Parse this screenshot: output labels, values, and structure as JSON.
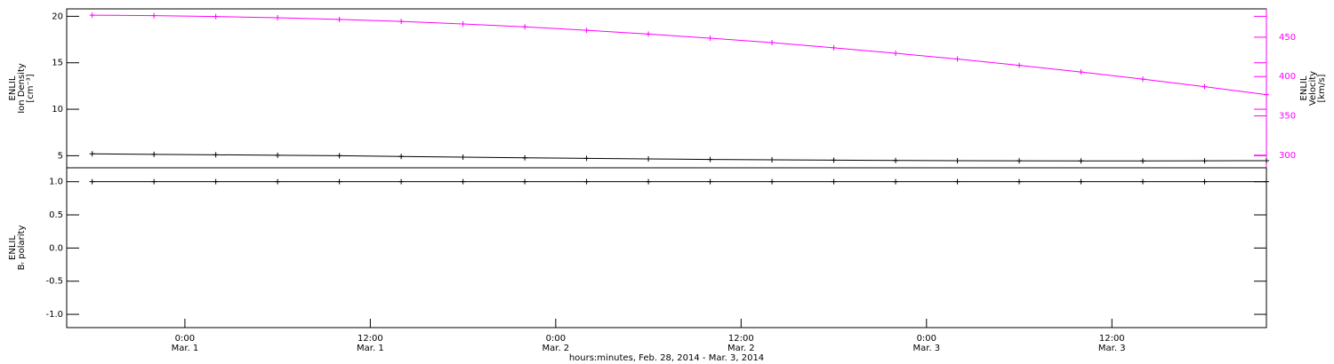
{
  "chart_data": [
    {
      "type": "line",
      "ylabel": [
        "ENLIL",
        "Ion Density",
        "[cm⁻³]"
      ],
      "y2label": [
        "ENLIL",
        "Velocity",
        "[km/s]"
      ],
      "x": [
        -6,
        -2,
        2,
        6,
        10,
        14,
        18,
        22,
        26,
        30,
        34,
        38,
        42,
        46,
        50,
        54,
        58,
        62,
        66,
        70
      ],
      "xlim": [
        -7.65,
        70
      ],
      "ylim": [
        3.7,
        20.8
      ],
      "yticks": [
        5,
        10,
        15,
        20
      ],
      "y2lim": [
        284,
        486
      ],
      "y2ticks": [
        300,
        350,
        400,
        450
      ],
      "series": [
        {
          "color": "#000000",
          "values": [
            5.2,
            5.15,
            5.1,
            5.05,
            5.0,
            4.92,
            4.85,
            4.78,
            4.72,
            4.66,
            4.6,
            4.56,
            4.52,
            4.49,
            4.47,
            4.45,
            4.44,
            4.44,
            4.45,
            4.47
          ]
        },
        {
          "color": "#ff00ff",
          "axis": "y2",
          "values": [
            478,
            477.4,
            476.3,
            474.7,
            472.6,
            470,
            466.8,
            463.1,
            458.8,
            454,
            448.7,
            443.1,
            436.5,
            429.6,
            422.2,
            414.2,
            405.7,
            396.7,
            387.1,
            377
          ]
        }
      ]
    },
    {
      "type": "line",
      "ylabel": [
        "ENLIL",
        "Bᵣ polarity"
      ],
      "x": [
        -6,
        -2,
        2,
        6,
        10,
        14,
        18,
        22,
        26,
        30,
        34,
        38,
        42,
        46,
        50,
        54,
        58,
        62,
        66,
        70
      ],
      "xlim": [
        -7.65,
        70
      ],
      "xticks": [
        {
          "value": 0,
          "label": "0:00"
        },
        {
          "value": 12,
          "label": "12:00"
        },
        {
          "value": 24,
          "label": "0:00"
        },
        {
          "value": 36,
          "label": "12:00"
        },
        {
          "value": 48,
          "label": "0:00"
        },
        {
          "value": 60,
          "label": "12:00"
        }
      ],
      "xtick_dates": [
        "Mar. 1",
        "Mar. 1",
        "Mar. 2",
        "Mar. 2",
        "Mar. 3",
        "Mar. 3"
      ],
      "xlabel": "hours:minutes, Feb. 28, 2014 - Mar.  3, 2014",
      "ylim": [
        -1.2,
        1.21
      ],
      "yticks": [
        1.0,
        0.5,
        0.0,
        -0.5,
        -1.0
      ],
      "series": [
        {
          "color": "#000000",
          "values": [
            1,
            1,
            1,
            1,
            1,
            1,
            1,
            1,
            1,
            1,
            1,
            1,
            1,
            1,
            1,
            1,
            1,
            1,
            1,
            1
          ]
        }
      ]
    }
  ]
}
